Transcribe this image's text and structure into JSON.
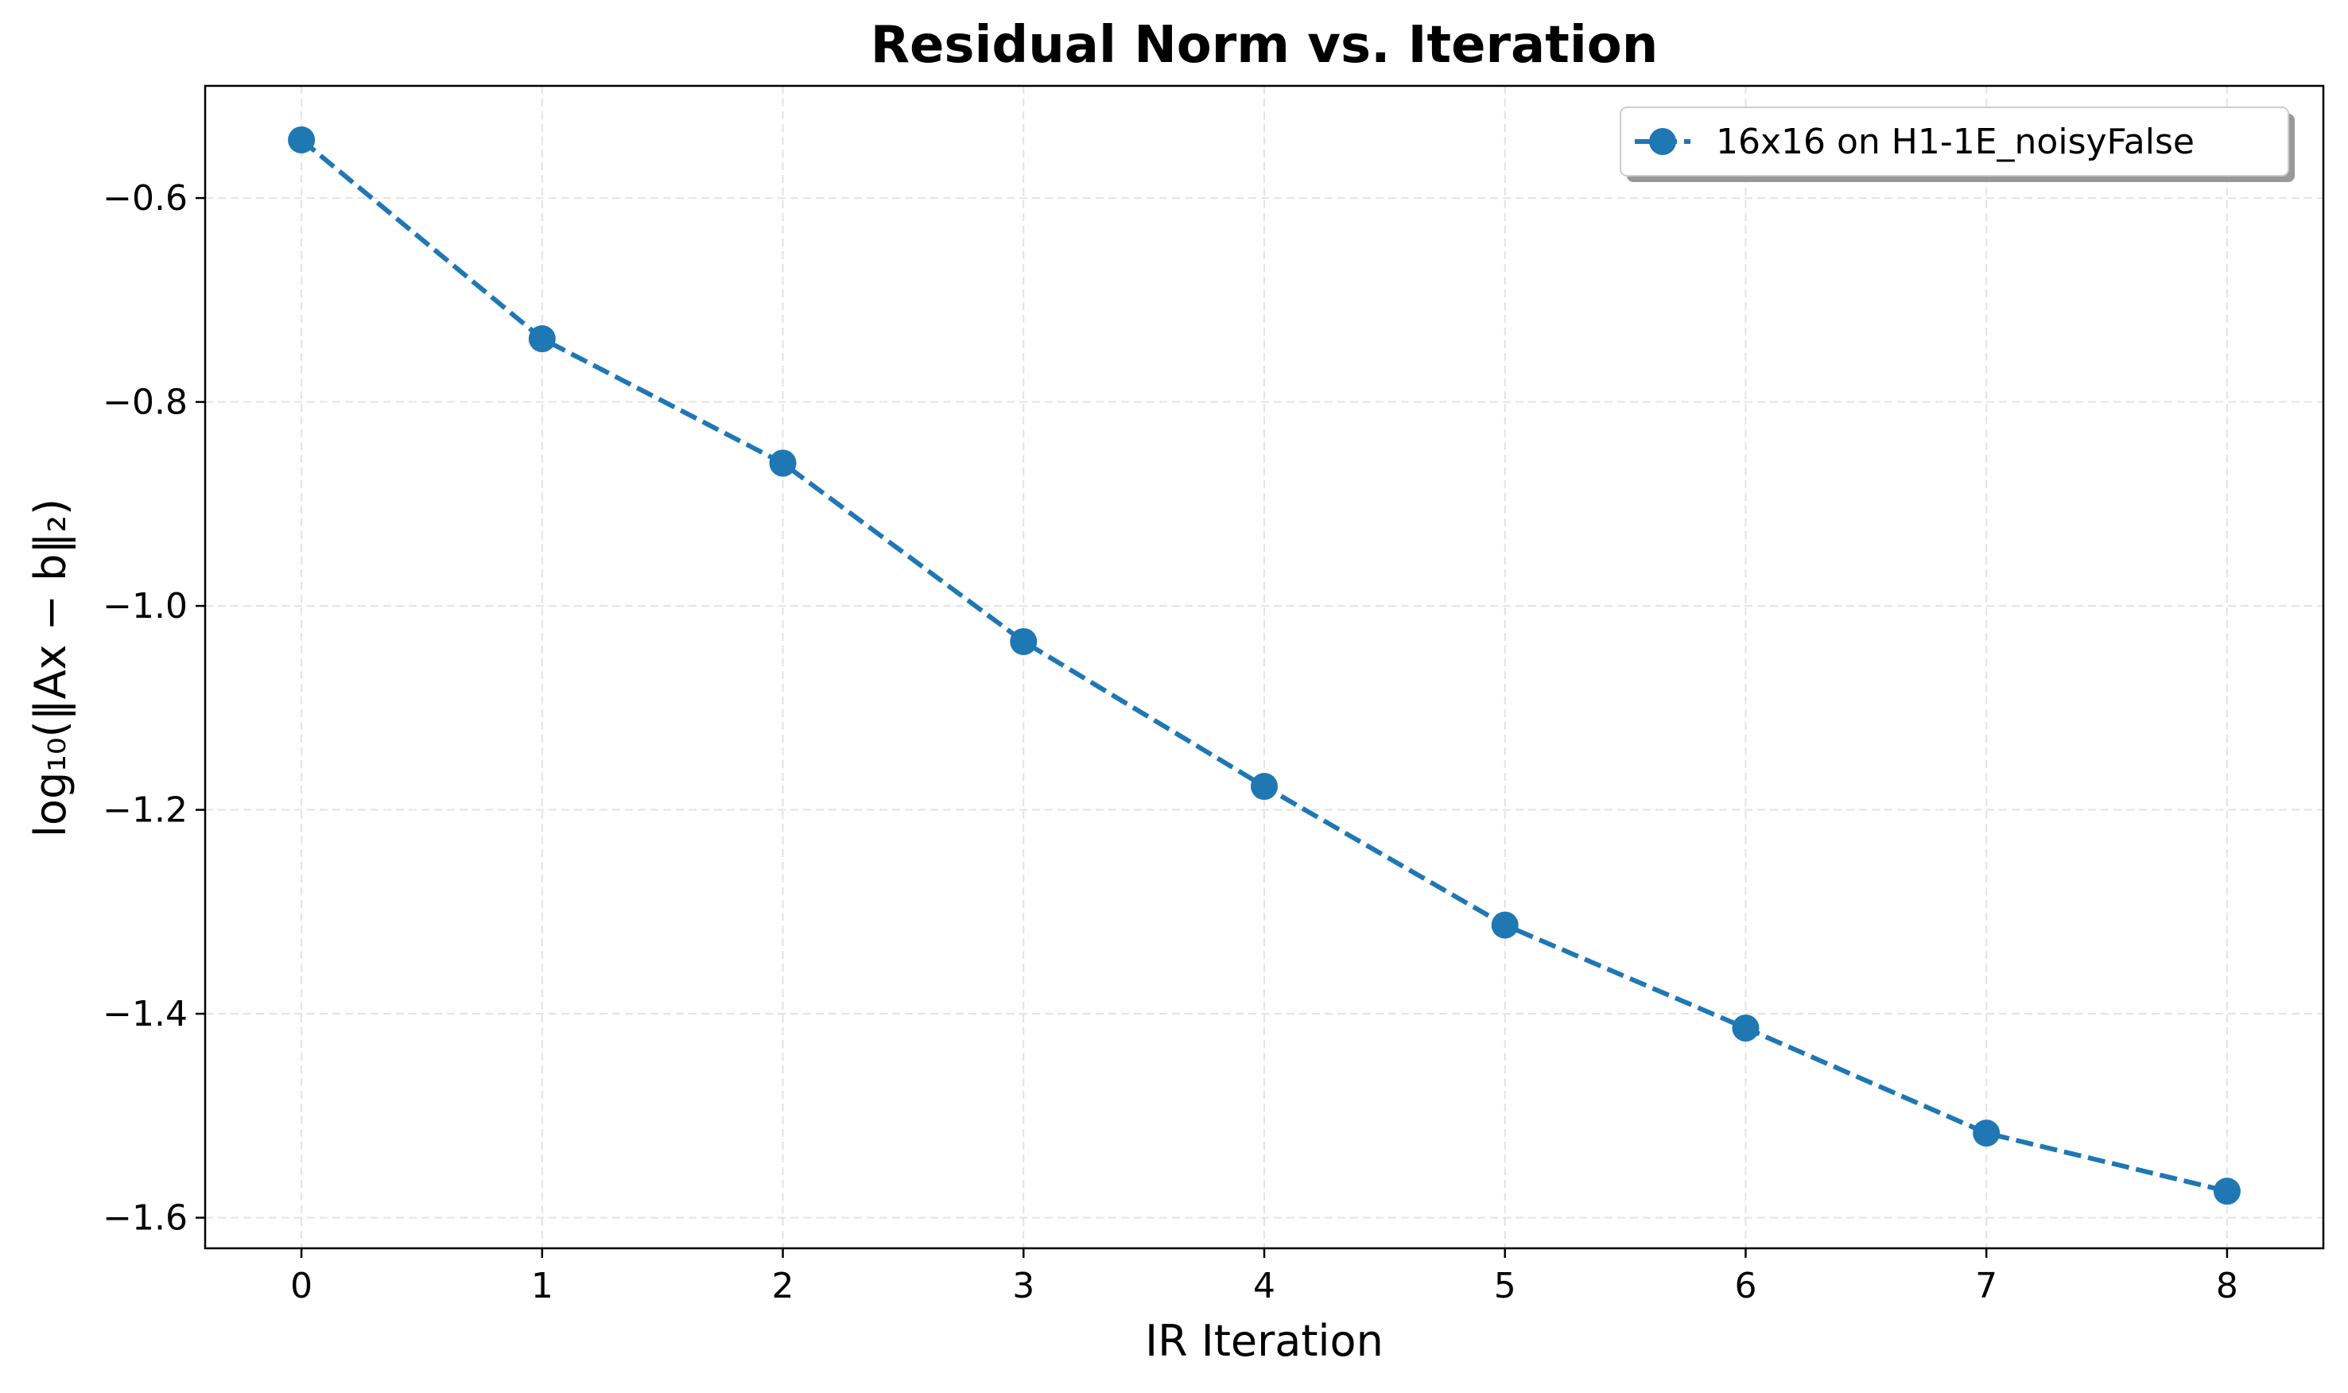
{
  "chart_data": {
    "type": "line",
    "title": "Residual Norm vs. Iteration",
    "xlabel": "IR Iteration",
    "ylabel": "log₁₀(‖Ax − b‖₂)",
    "x": [
      0,
      1,
      2,
      3,
      4,
      5,
      6,
      7,
      8
    ],
    "series": [
      {
        "name": "16x16 on H1-1E_noisyFalse",
        "values": [
          -0.543,
          -0.738,
          -0.86,
          -1.035,
          -1.177,
          -1.313,
          -1.414,
          -1.517,
          -1.574
        ],
        "color": "#1f77b4",
        "line_style": "dashed",
        "marker": "circle"
      }
    ],
    "xlim": [
      -0.4,
      8.4
    ],
    "ylim": [
      -1.63,
      -0.49
    ],
    "xticks": [
      0,
      1,
      2,
      3,
      4,
      5,
      6,
      7,
      8
    ],
    "xtick_labels": [
      "0",
      "1",
      "2",
      "3",
      "4",
      "5",
      "6",
      "7",
      "8"
    ],
    "yticks": [
      -0.6,
      -0.8,
      -1.0,
      -1.2,
      -1.4,
      -1.6
    ],
    "ytick_labels": [
      "−0.6",
      "−0.8",
      "−1.0",
      "−1.2",
      "−1.4",
      "−1.6"
    ],
    "grid": true,
    "legend_position": "top-right"
  }
}
